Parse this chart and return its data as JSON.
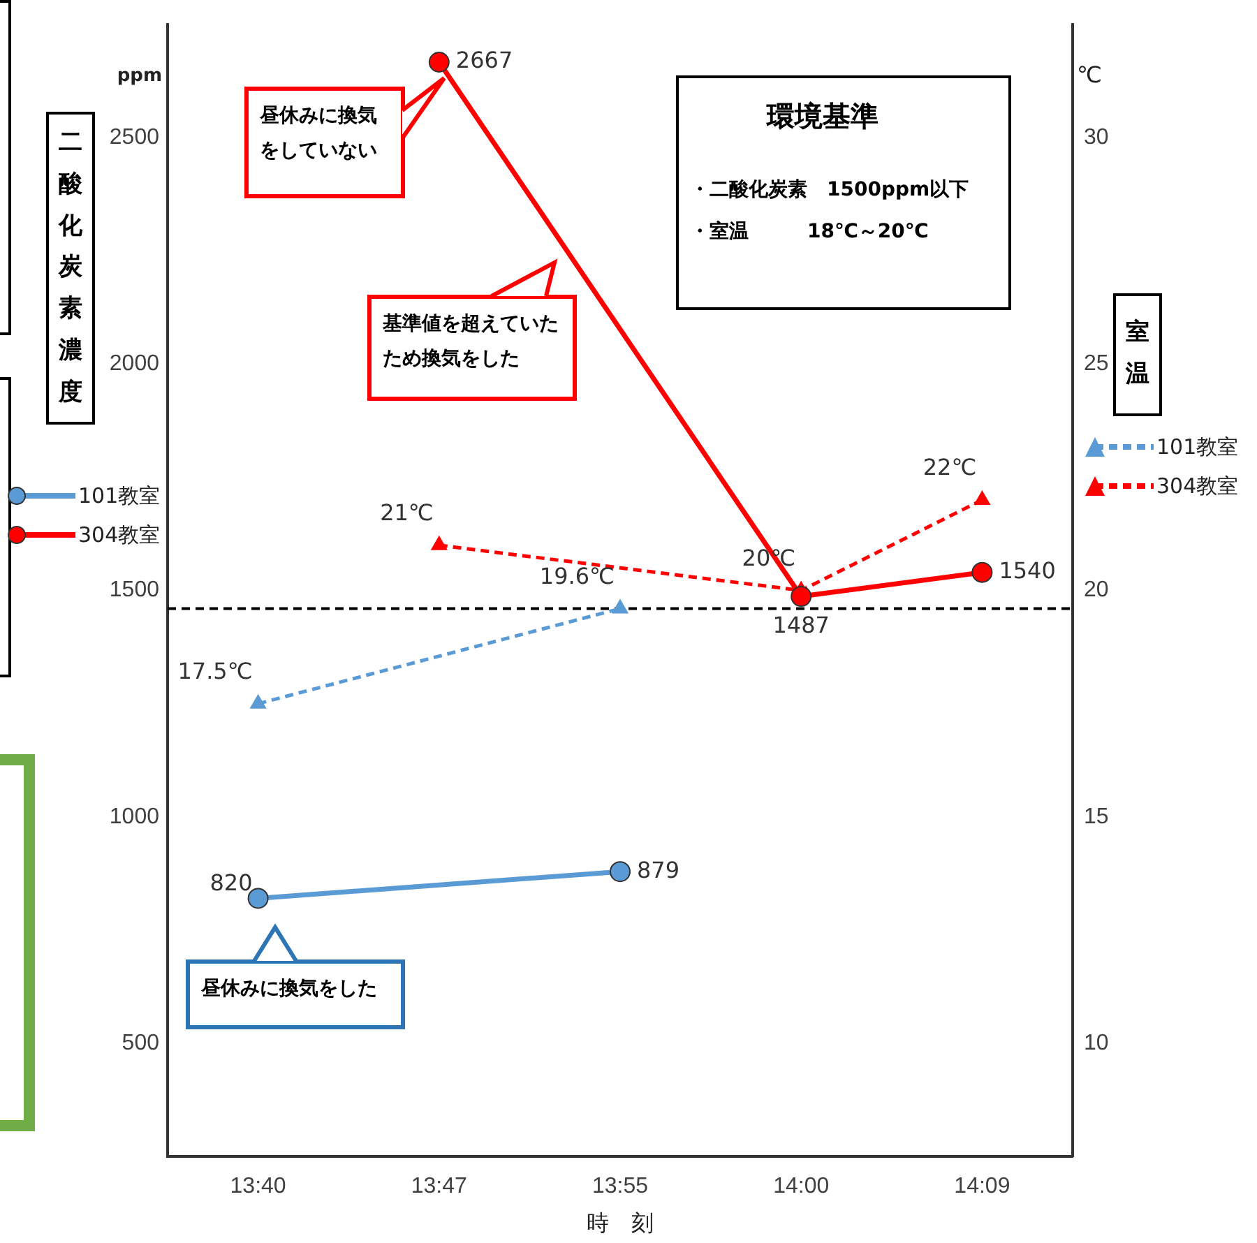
{
  "chart_data": {
    "type": "line",
    "categories": [
      "13:40",
      "13:47",
      "13:55",
      "14:00",
      "14:09"
    ],
    "xlabel": "時　刻",
    "ylabel": "二酸化炭素濃度",
    "y2label": "室温",
    "ylim": [
      250,
      2750
    ],
    "yticks": [
      500,
      1000,
      1500,
      2000,
      2500
    ],
    "y2lim": [
      7.5,
      32.5
    ],
    "y2ticks": [
      10,
      15,
      20,
      25,
      30
    ],
    "grid": false,
    "legend": "left",
    "series": [
      {
        "name": "101教室",
        "color": "#5b9bd5",
        "values": [
          820,
          null,
          879,
          null,
          null
        ],
        "value_labels": [
          "820",
          null,
          "879",
          null,
          null
        ],
        "marker": "circle",
        "line_style": "solid"
      },
      {
        "name": "304教室",
        "color": "#ff0000",
        "values": [
          null,
          2667,
          null,
          1487,
          1540
        ],
        "value_labels": [
          null,
          "2667",
          null,
          "1487",
          "1540"
        ],
        "marker": "circle",
        "line_style": "solid"
      },
      {
        "name": "101教室",
        "color": "#5b9bd5",
        "axis": "y2",
        "values": [
          17.5,
          null,
          19.6,
          null,
          null
        ],
        "value_labels": [
          "17.5℃",
          null,
          "19.6℃",
          null,
          null
        ],
        "marker": "triangle",
        "line_style": "dashed"
      },
      {
        "name": "304教室",
        "color": "#ff0000",
        "axis": "y2",
        "values": [
          null,
          21,
          null,
          20,
          22
        ],
        "value_labels": [
          null,
          "21℃",
          null,
          "20℃",
          "22℃"
        ],
        "marker": "triangle",
        "line_style": "dashed"
      }
    ],
    "ref_lines": [
      {
        "axis": "y",
        "value": 1460,
        "color": "#000000",
        "line_style": "dashed"
      }
    ],
    "annotations": [
      "ppm",
      "℃",
      "昼休みに換気をしていない",
      "基準値を超えていたため換気をした",
      "昼休みに換気をした",
      "環境基準",
      "・二酸化炭素　1500ppm以下",
      "・室温　　　18℃～20℃"
    ]
  }
}
